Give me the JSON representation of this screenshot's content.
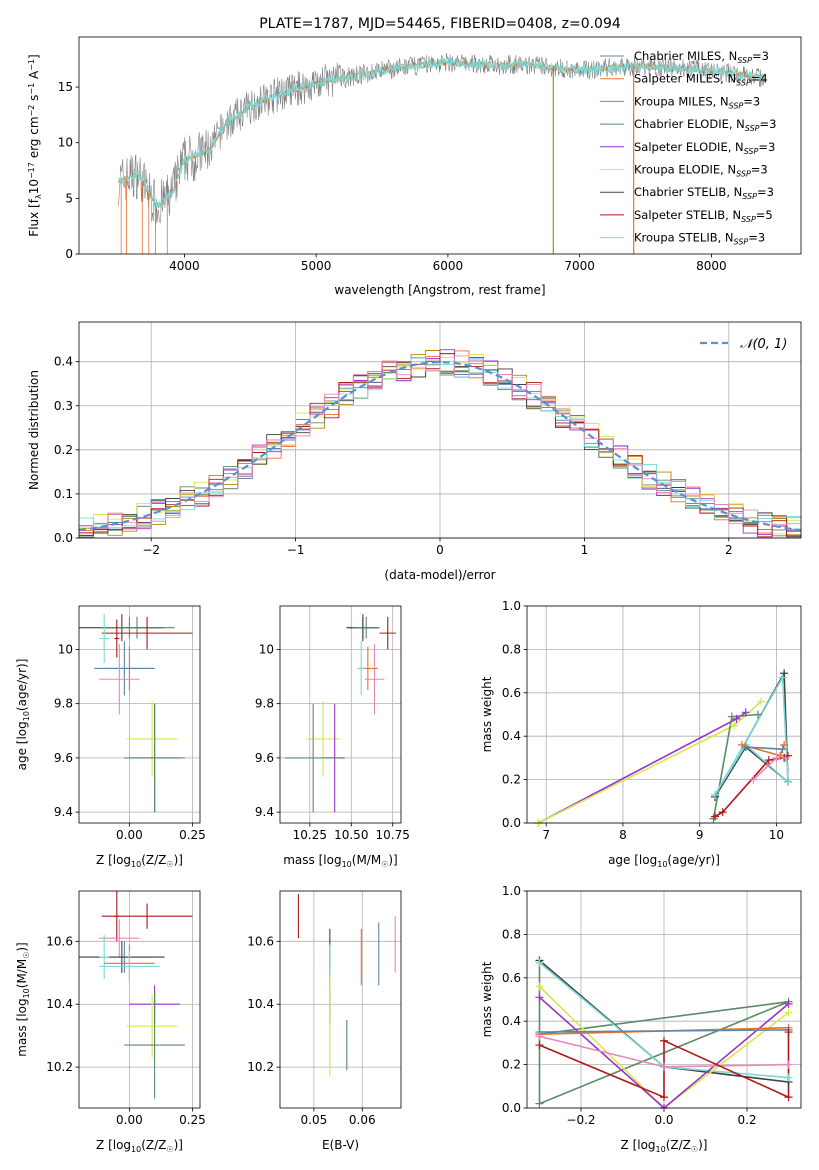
{
  "colors": {
    "chab_miles": "#5c86a8",
    "salp_miles": "#e8702a",
    "krou_miles": "#b8860b",
    "chab_elodie": "#5a8a68",
    "salp_elodie": "#9a32c8",
    "krou_elodie": "#d8e84a",
    "chab_stelib": "#404040",
    "salp_stelib": "#b01818",
    "krou_stelib": "#7adad8",
    "pink": "#e888b8",
    "gauss": "#5b8fd6",
    "data": "#808080"
  },
  "chart_data": [
    {
      "id": "spectrum",
      "type": "line",
      "title": "PLATE=1787, MJD=54465, FIBERID=0408, z=0.094",
      "xlabel": "wavelength [Angstrom, rest frame]",
      "ylabel": "Flux [f_λ10^-17 erg cm^-2 s^-1 A^-1]",
      "xlim": [
        3200,
        8680
      ],
      "ylim": [
        0,
        19.5
      ],
      "xticks": [
        4000,
        5000,
        6000,
        7000,
        8000
      ],
      "yticks": [
        0,
        5,
        10,
        15
      ],
      "legend_position": "right",
      "legend": [
        {
          "label": "Chabrier MILES, N_SSP=3",
          "color": "#5c86a8"
        },
        {
          "label": "Salpeter MILES, N_SSP=4",
          "color": "#e8702a"
        },
        {
          "label": "Kroupa MILES, N_SSP=3",
          "color": "#b8860b"
        },
        {
          "label": "Chabrier ELODIE, N_SSP=3",
          "color": "#5a8a68"
        },
        {
          "label": "Salpeter ELODIE, N_SSP=3",
          "color": "#9a32c8"
        },
        {
          "label": "Kroupa ELODIE, N_SSP=3",
          "color": "#d8e84a"
        },
        {
          "label": "Chabrier STELIB, N_SSP=3",
          "color": "#404040"
        },
        {
          "label": "Salpeter STELIB, N_SSP=5",
          "color": "#b01818"
        },
        {
          "label": "Kroupa STELIB, N_SSP=3",
          "color": "#7adad8"
        }
      ],
      "continuum_x": [
        3500,
        3650,
        3750,
        3800,
        3900,
        4000,
        4100,
        4200,
        4300,
        4500,
        4700,
        4900,
        5100,
        5300,
        5500,
        5800,
        6000,
        6300,
        6600,
        7000,
        7400,
        7800,
        8100,
        8300,
        8400
      ],
      "continuum_y": [
        6.5,
        7.2,
        5.0,
        4.3,
        5.3,
        8.5,
        8.8,
        9.5,
        11.5,
        13.3,
        14.3,
        15.0,
        15.6,
        16.0,
        16.5,
        17.0,
        17.2,
        17.0,
        17.0,
        16.5,
        16.9,
        16.7,
        16.3,
        16.0,
        15.8
      ],
      "spikes": [
        {
          "x": 6800,
          "y_min": 0
        },
        {
          "x": 7410,
          "y_min": 0
        }
      ]
    },
    {
      "id": "residual-histogram",
      "type": "histogram",
      "xlabel": "(data-model)/error",
      "ylabel": "Normed distribution",
      "xlim": [
        -2.5,
        2.5
      ],
      "ylim": [
        0,
        0.49
      ],
      "xticks": [
        -2,
        -1,
        0,
        1,
        2
      ],
      "yticks": [
        0,
        0.1,
        0.2,
        0.3,
        0.4
      ],
      "grid": true,
      "legend_position": "top-right",
      "gauss_label": "𝒩(0, 1)",
      "bin_width": 0.1,
      "bin_start": -2.5
    },
    {
      "id": "age-vs-Z",
      "type": "errorbar",
      "xlabel": "Z [log10(Z/Z⊙)]",
      "ylabel": "age  [log10(age/yr)]",
      "xlim": [
        -0.2,
        0.28
      ],
      "ylim": [
        9.36,
        10.16
      ],
      "xticks": [
        -0.0,
        0.25
      ],
      "xticklabels": [
        "0.00",
        "0.25"
      ],
      "yticks": [
        9.4,
        9.6,
        9.8,
        10.0
      ],
      "grid": true,
      "points": [
        {
          "c": "chab_miles",
          "x": 0.0,
          "xe": 0.12,
          "y": 10.08,
          "ye": 0.04
        },
        {
          "c": "chab_stelib",
          "x": -0.03,
          "xe": 0.17,
          "y": 10.08,
          "ye": 0.05
        },
        {
          "c": "chab_elodie",
          "x": 0.03,
          "xe": 0.15,
          "y": 10.08,
          "ye": 0.04
        },
        {
          "c": "salp_stelib",
          "x": 0.07,
          "xe": 0.18,
          "y": 10.06,
          "ye": 0.06
        },
        {
          "c": "krou_stelib",
          "x": -0.1,
          "xe": 0.02,
          "y": 10.04,
          "ye": 0.09
        },
        {
          "c": "salp_stelib",
          "x": -0.05,
          "xe": 0.01,
          "y": 10.04,
          "ye": 0.07
        },
        {
          "c": "salp_miles",
          "x": -0.0,
          "xe": 0.1,
          "y": 9.93,
          "ye": 0.08
        },
        {
          "c": "chab_miles",
          "x": -0.02,
          "xe": 0.12,
          "y": 9.93,
          "ye": 0.1
        },
        {
          "c": "pink",
          "x": -0.04,
          "xe": 0.08,
          "y": 9.89,
          "ye": 0.13
        },
        {
          "c": "krou_elodie",
          "x": 0.09,
          "xe": 0.1,
          "y": 9.67,
          "ye": 0.14
        },
        {
          "c": "salp_elodie",
          "x": 0.1,
          "xe": 0.1,
          "y": 9.6,
          "ye": 0.2
        },
        {
          "c": "chab_elodie",
          "x": 0.1,
          "xe": 0.12,
          "y": 9.6,
          "ye": 0.2
        }
      ]
    },
    {
      "id": "age-vs-mass",
      "type": "errorbar",
      "xlabel": "mass [log10(M/M⊙)]",
      "ylabel": "",
      "xlim": [
        10.07,
        10.8
      ],
      "ylim": [
        9.36,
        10.16
      ],
      "xticks": [
        10.25,
        10.5,
        10.75
      ],
      "xticklabels": [
        "10.25",
        "10.50",
        "10.75"
      ],
      "yticks": [
        9.4,
        9.6,
        9.8,
        10.0
      ],
      "grid": true,
      "points": [
        {
          "c": "chab_miles",
          "x": 10.57,
          "xe": 0.09,
          "y": 10.08,
          "ye": 0.04
        },
        {
          "c": "chab_stelib",
          "x": 10.57,
          "xe": 0.1,
          "y": 10.08,
          "ye": 0.05
        },
        {
          "c": "chab_elodie",
          "x": 10.59,
          "xe": 0.08,
          "y": 10.08,
          "ye": 0.04
        },
        {
          "c": "salp_stelib",
          "x": 10.72,
          "xe": 0.05,
          "y": 10.06,
          "ye": 0.06
        },
        {
          "c": "salp_miles",
          "x": 10.6,
          "xe": 0.06,
          "y": 9.93,
          "ye": 0.08
        },
        {
          "c": "krou_stelib",
          "x": 10.56,
          "xe": 0.02,
          "y": 9.93,
          "ye": 0.1
        },
        {
          "c": "pink",
          "x": 10.64,
          "xe": 0.06,
          "y": 9.89,
          "ye": 0.13
        },
        {
          "c": "krou_elodie",
          "x": 10.33,
          "xe": 0.1,
          "y": 9.67,
          "ye": 0.14
        },
        {
          "c": "salp_elodie",
          "x": 10.4,
          "xe": 0.06,
          "y": 9.6,
          "ye": 0.2
        },
        {
          "c": "chab_elodie",
          "x": 10.27,
          "xe": 0.17,
          "y": 9.6,
          "ye": 0.2
        }
      ]
    },
    {
      "id": "weight-vs-age",
      "type": "line",
      "xlabel": "age  [log10(age/yr)]",
      "ylabel": "mass weight",
      "xlim": [
        6.75,
        10.32
      ],
      "ylim": [
        0.0,
        1.0
      ],
      "xticks": [
        7,
        8,
        9,
        10
      ],
      "yticks": [
        0.0,
        0.2,
        0.4,
        0.6,
        0.8,
        1.0
      ],
      "grid": true,
      "series": [
        {
          "c": "salp_elodie",
          "x": [
            6.9,
            9.48,
            9.6
          ],
          "y": [
            0.0,
            0.48,
            0.51
          ]
        },
        {
          "c": "krou_elodie",
          "x": [
            6.9,
            9.45,
            9.8
          ],
          "y": [
            0.0,
            0.45,
            0.56
          ]
        },
        {
          "c": "chab_stelib",
          "x": [
            9.2,
            10.1,
            10.15,
            9.6,
            9.2
          ],
          "y": [
            0.12,
            0.69,
            0.19,
            0.35,
            0.12
          ]
        },
        {
          "c": "chab_elodie",
          "x": [
            9.18,
            9.42,
            9.76
          ],
          "y": [
            0.02,
            0.49,
            0.5
          ]
        },
        {
          "c": "krou_stelib",
          "x": [
            9.2,
            10.08,
            10.15,
            9.6,
            9.2
          ],
          "y": [
            0.13,
            0.67,
            0.19,
            0.36,
            0.13
          ]
        },
        {
          "c": "salp_miles",
          "x": [
            9.55,
            10.05,
            10.1
          ],
          "y": [
            0.36,
            0.31,
            0.36
          ]
        },
        {
          "c": "chab_miles",
          "x": [
            9.6,
            10.08
          ],
          "y": [
            0.35,
            0.34
          ]
        },
        {
          "c": "salp_stelib",
          "x": [
            9.2,
            9.3,
            9.9,
            10.1,
            10.15
          ],
          "y": [
            0.03,
            0.05,
            0.29,
            0.3,
            0.31
          ]
        },
        {
          "c": "pink",
          "x": [
            9.7,
            10.0,
            10.12
          ],
          "y": [
            0.2,
            0.3,
            0.3
          ]
        }
      ]
    },
    {
      "id": "mass-vs-Z",
      "type": "errorbar",
      "xlabel": "Z [log10(Z/Z⊙)]",
      "ylabel": "mass [log10(M/M⊙)]",
      "xlim": [
        -0.2,
        0.28
      ],
      "ylim": [
        10.07,
        10.76
      ],
      "xticks": [
        -0.0,
        0.25
      ],
      "xticklabels": [
        "0.00",
        "0.25"
      ],
      "yticks": [
        10.2,
        10.4,
        10.6
      ],
      "grid": true,
      "points": [
        {
          "c": "salp_stelib",
          "x": -0.05,
          "xe": 0.01,
          "y": 10.68,
          "ye": 0.08
        },
        {
          "c": "salp_stelib",
          "x": 0.07,
          "xe": 0.18,
          "y": 10.68,
          "ye": 0.04
        },
        {
          "c": "pink",
          "x": -0.04,
          "xe": 0.08,
          "y": 10.61,
          "ye": 0.06
        },
        {
          "c": "chab_miles",
          "x": -0.02,
          "xe": 0.12,
          "y": 10.55,
          "ye": 0.05
        },
        {
          "c": "chab_stelib",
          "x": -0.03,
          "xe": 0.17,
          "y": 10.55,
          "ye": 0.05
        },
        {
          "c": "krou_stelib",
          "x": -0.1,
          "xe": 0.02,
          "y": 10.55,
          "ye": 0.07
        },
        {
          "c": "salp_miles",
          "x": -0.0,
          "xe": 0.1,
          "y": 10.53,
          "ye": 0.06
        },
        {
          "c": "krou_stelib",
          "x": 0.0,
          "xe": 0.12,
          "y": 10.52,
          "ye": 0.05
        },
        {
          "c": "salp_elodie",
          "x": 0.1,
          "xe": 0.1,
          "y": 10.4,
          "ye": 0.06
        },
        {
          "c": "krou_elodie",
          "x": 0.09,
          "xe": 0.1,
          "y": 10.33,
          "ye": 0.1
        },
        {
          "c": "chab_elodie",
          "x": 0.1,
          "xe": 0.12,
          "y": 10.27,
          "ye": 0.17
        }
      ]
    },
    {
      "id": "mass-vs-ebv",
      "type": "errorbar",
      "xlabel": "E(B-V)",
      "ylabel": "",
      "xlim": [
        0.043,
        0.068
      ],
      "ylim": [
        10.07,
        10.76
      ],
      "xticks": [
        0.05,
        0.06
      ],
      "xticklabels": [
        "0.05",
        "0.06"
      ],
      "yticks": [
        10.2,
        10.4,
        10.6
      ],
      "grid": true,
      "points": [
        {
          "c": "salp_stelib",
          "x": 0.0468,
          "xe": 0,
          "y": 10.68,
          "ye": 0.07
        },
        {
          "c": "chab_stelib",
          "x": 0.0533,
          "xe": 0,
          "y": 10.55,
          "ye": 0.09
        },
        {
          "c": "krou_stelib",
          "x": 0.0533,
          "xe": 0,
          "y": 10.52,
          "ye": 0.07
        },
        {
          "c": "salp_elodie",
          "x": 0.0533,
          "xe": 0,
          "y": 10.4,
          "ye": 0.06
        },
        {
          "c": "krou_elodie",
          "x": 0.0533,
          "xe": 0,
          "y": 10.33,
          "ye": 0.16
        },
        {
          "c": "chab_elodie",
          "x": 0.0568,
          "xe": 0,
          "y": 10.27,
          "ye": 0.08
        },
        {
          "c": "salp_miles",
          "x": 0.0598,
          "xe": 0,
          "y": 10.55,
          "ye": 0.09
        },
        {
          "c": "chab_miles",
          "x": 0.0634,
          "xe": 0,
          "y": 10.56,
          "ye": 0.1
        },
        {
          "c": "pink",
          "x": 0.0668,
          "xe": 0,
          "y": 10.59,
          "ye": 0.09
        }
      ]
    },
    {
      "id": "weight-vs-Z",
      "type": "line",
      "xlabel": "Z [log10(Z/Z⊙)]",
      "ylabel": "mass weight",
      "xlim": [
        -0.33,
        0.33
      ],
      "ylim": [
        0.0,
        1.0
      ],
      "xticks": [
        -0.2,
        0.0,
        0.2
      ],
      "xticklabels": [
        "−0.2",
        "0.0",
        "0.2"
      ],
      "yticks": [
        0.0,
        0.2,
        0.4,
        0.6,
        0.8,
        1.0
      ],
      "grid": true,
      "series": [
        {
          "c": "chab_elodie",
          "x": [
            -0.3,
            -0.3,
            0.3,
            -0.3
          ],
          "y": [
            0.68,
            0.02,
            0.49,
            0.34
          ]
        },
        {
          "c": "chab_stelib",
          "x": [
            -0.3,
            0.0,
            0.3
          ],
          "y": [
            0.68,
            0.19,
            0.12
          ]
        },
        {
          "c": "krou_stelib",
          "x": [
            -0.3,
            0.0,
            0.3
          ],
          "y": [
            0.67,
            0.19,
            0.14
          ]
        },
        {
          "c": "krou_elodie",
          "x": [
            -0.3,
            0.0,
            0.3
          ],
          "y": [
            0.56,
            0.0,
            0.44
          ]
        },
        {
          "c": "salp_elodie",
          "x": [
            -0.3,
            0.0,
            0.3
          ],
          "y": [
            0.51,
            0.0,
            0.48
          ]
        },
        {
          "c": "salp_miles",
          "x": [
            -0.3,
            0.3
          ],
          "y": [
            0.34,
            0.37
          ]
        },
        {
          "c": "chab_miles",
          "x": [
            -0.3,
            0.3
          ],
          "y": [
            0.35,
            0.36
          ]
        },
        {
          "c": "pink",
          "x": [
            -0.3,
            0.0,
            0.3
          ],
          "y": [
            0.33,
            0.19,
            0.2
          ]
        },
        {
          "c": "salp_stelib",
          "x": [
            -0.3,
            0.0,
            0.0,
            0.3,
            0.3
          ],
          "y": [
            0.29,
            0.05,
            0.31,
            0.05,
            0.35
          ]
        }
      ]
    }
  ]
}
